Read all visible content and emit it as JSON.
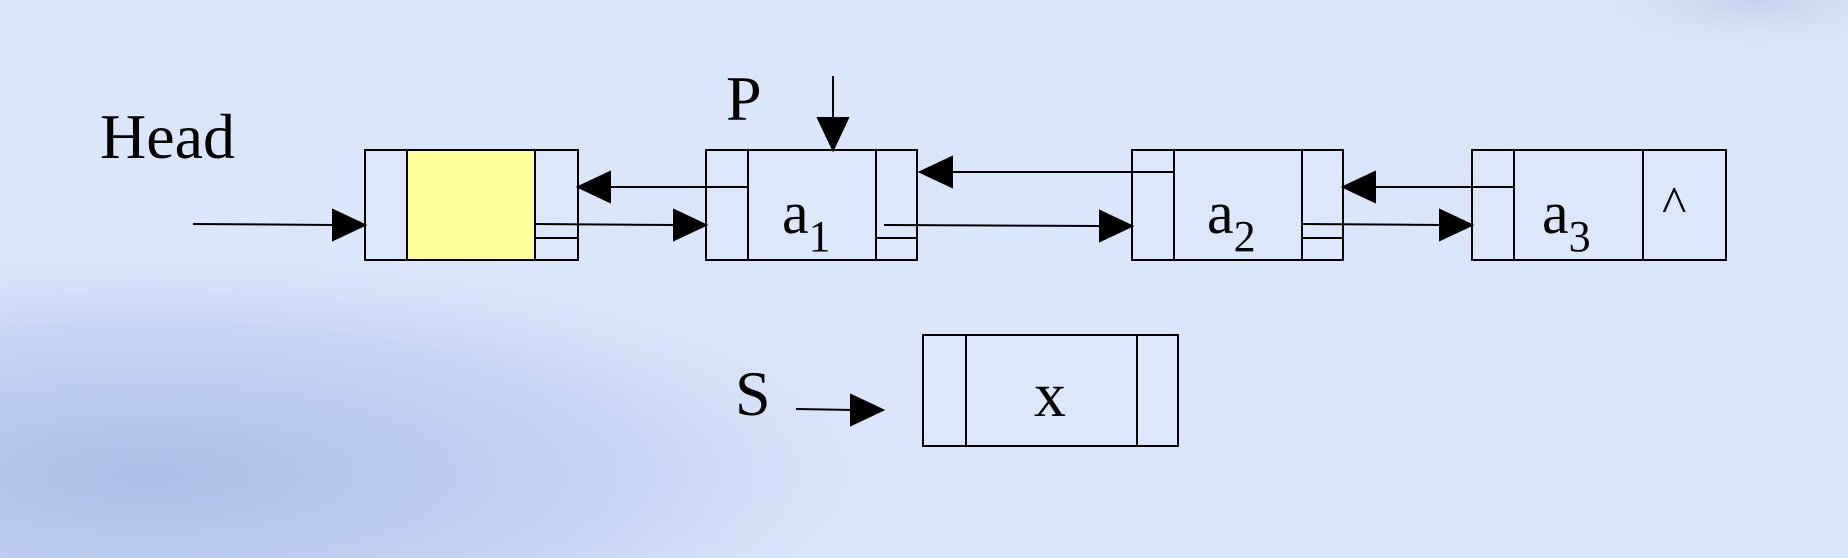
{
  "labels": {
    "head": "Head",
    "p": "P",
    "s": "S"
  },
  "nodes": [
    {
      "id": "header",
      "value": "",
      "sub": "",
      "fill": "#ffff99"
    },
    {
      "id": "a1",
      "value": "a",
      "sub": "1",
      "fill": ""
    },
    {
      "id": "a2",
      "value": "a",
      "sub": "2",
      "fill": ""
    },
    {
      "id": "a3",
      "value": "a",
      "sub": "3",
      "fill": ""
    }
  ],
  "null_marker": "^",
  "new_node": {
    "id": "s",
    "value": "x"
  },
  "colors": {
    "background": "#dce6fb",
    "node_fill": "#dde7fb",
    "header_data_fill": "#ffff99",
    "stroke": "#000000"
  }
}
